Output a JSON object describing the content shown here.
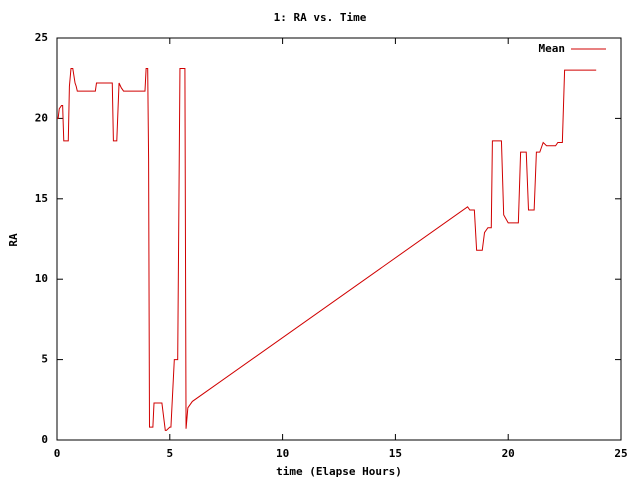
{
  "chart_data": {
    "type": "line",
    "title": "1: RA vs. Time",
    "xlabel": "time (Elapse Hours)",
    "ylabel": "RA",
    "x": [
      0,
      0.05,
      0.1,
      0.2,
      0.25,
      0.3,
      0.5,
      0.55,
      0.62,
      0.7,
      0.8,
      0.85,
      0.9,
      1.0,
      1.1,
      1.7,
      1.75,
      2.45,
      2.5,
      2.65,
      2.75,
      2.85,
      2.95,
      3.9,
      3.95,
      4.02,
      4.06,
      4.1,
      4.25,
      4.3,
      4.65,
      4.8,
      4.85,
      5.0,
      5.05,
      5.2,
      5.35,
      5.45,
      5.67,
      5.72,
      5.8,
      6.0,
      18.2,
      18.3,
      18.5,
      18.6,
      18.85,
      18.95,
      19.1,
      19.25,
      19.3,
      19.7,
      19.8,
      20.0,
      20.45,
      20.55,
      20.8,
      20.9,
      21.15,
      21.25,
      21.4,
      21.55,
      21.7,
      22.1,
      22.2,
      22.4,
      22.5,
      23.9
    ],
    "series": [
      {
        "name": "Mean",
        "color": "#d00000",
        "values": [
          20.0,
          20.0,
          20.6,
          20.8,
          20.8,
          18.6,
          18.6,
          22.0,
          23.1,
          23.1,
          22.2,
          22.0,
          21.7,
          21.7,
          21.7,
          21.7,
          22.2,
          22.2,
          18.6,
          18.6,
          22.2,
          21.9,
          21.7,
          21.7,
          23.1,
          23.1,
          17.5,
          0.8,
          0.8,
          2.3,
          2.3,
          0.6,
          0.6,
          0.8,
          0.8,
          5.0,
          5.0,
          23.1,
          23.1,
          0.7,
          2.0,
          2.4,
          14.5,
          14.3,
          14.3,
          11.8,
          11.8,
          12.9,
          13.2,
          13.2,
          18.6,
          18.6,
          14.0,
          13.5,
          13.5,
          17.9,
          17.9,
          14.3,
          14.3,
          17.9,
          17.9,
          18.5,
          18.3,
          18.3,
          18.5,
          18.5,
          23.0,
          23.0
        ]
      }
    ],
    "xlim": [
      0,
      25
    ],
    "xticks": [
      0,
      5,
      10,
      15,
      20,
      25
    ],
    "ylim": [
      0,
      25
    ],
    "yticks": [
      0,
      5,
      10,
      15,
      20,
      25
    ],
    "grid": false,
    "legend": "top-right"
  }
}
